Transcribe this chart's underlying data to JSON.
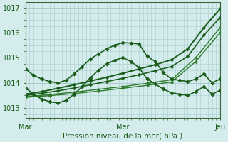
{
  "bg_color": "#d4ecec",
  "grid_color": "#aacccc",
  "dark_green": "#1a5c1a",
  "mid_green": "#2d7a2d",
  "ylim": [
    1012.6,
    1017.2
  ],
  "xlim": [
    0,
    48
  ],
  "x_ticks": [
    0,
    24,
    48
  ],
  "x_tick_labels": [
    "Mar",
    "Mer",
    "Jeu"
  ],
  "xlabel": "Pression niveau de la mer( hPa )",
  "series": [
    {
      "x": [
        0,
        2,
        4,
        6,
        8,
        10,
        12,
        14,
        16,
        18,
        20,
        22,
        24,
        26,
        28,
        30,
        32,
        34,
        36,
        38,
        40,
        42,
        44,
        46,
        48
      ],
      "y": [
        1014.55,
        1014.3,
        1014.15,
        1014.05,
        1014.0,
        1014.1,
        1014.35,
        1014.65,
        1014.95,
        1015.15,
        1015.35,
        1015.5,
        1015.6,
        1015.58,
        1015.55,
        1015.05,
        1014.85,
        1014.4,
        1014.15,
        1014.1,
        1014.05,
        1014.15,
        1014.35,
        1014.0,
        1014.15
      ],
      "color": "#1a5c1a",
      "lw": 1.2,
      "marker": "D",
      "ms": 2.8,
      "zorder": 5
    },
    {
      "x": [
        0,
        2,
        4,
        6,
        8,
        10,
        12,
        14,
        16,
        18,
        20,
        22,
        24,
        26,
        28,
        30,
        32,
        34,
        36,
        38,
        40,
        42,
        44,
        46,
        48
      ],
      "y": [
        1013.8,
        1013.55,
        1013.35,
        1013.25,
        1013.2,
        1013.3,
        1013.55,
        1013.85,
        1014.2,
        1014.5,
        1014.75,
        1014.9,
        1015.0,
        1014.85,
        1014.6,
        1014.15,
        1013.95,
        1013.75,
        1013.6,
        1013.55,
        1013.5,
        1013.65,
        1013.85,
        1013.55,
        1013.7
      ],
      "color": "#1a5c1a",
      "lw": 1.2,
      "marker": "D",
      "ms": 2.8,
      "zorder": 5
    },
    {
      "x": [
        0,
        4,
        8,
        12,
        16,
        20,
        24,
        28,
        32,
        36,
        40,
        44,
        48
      ],
      "y": [
        1013.55,
        1013.65,
        1013.78,
        1013.92,
        1014.07,
        1014.22,
        1014.38,
        1014.55,
        1014.72,
        1014.92,
        1015.35,
        1016.2,
        1016.95
      ],
      "color": "#1a5c1a",
      "lw": 1.4,
      "marker": "D",
      "ms": 2.5,
      "zorder": 4
    },
    {
      "x": [
        0,
        4,
        8,
        12,
        16,
        20,
        24,
        28,
        32,
        36,
        40,
        44,
        48
      ],
      "y": [
        1013.5,
        1013.58,
        1013.68,
        1013.79,
        1013.92,
        1014.05,
        1014.18,
        1014.32,
        1014.48,
        1014.65,
        1015.05,
        1015.9,
        1016.6
      ],
      "color": "#1a5c1a",
      "lw": 1.2,
      "marker": "D",
      "ms": 2.5,
      "zorder": 4
    },
    {
      "x": [
        0,
        6,
        12,
        18,
        24,
        30,
        36,
        42,
        48
      ],
      "y": [
        1013.45,
        1013.53,
        1013.63,
        1013.74,
        1013.85,
        1013.98,
        1014.12,
        1015.0,
        1016.2
      ],
      "color": "#2d7a2d",
      "lw": 1.0,
      "marker": "D",
      "ms": 2.3,
      "zorder": 3
    },
    {
      "x": [
        0,
        6,
        12,
        18,
        24,
        30,
        36,
        42,
        48
      ],
      "y": [
        1013.42,
        1013.49,
        1013.57,
        1013.67,
        1013.78,
        1013.9,
        1014.03,
        1014.85,
        1016.0
      ],
      "color": "#2d7a2d",
      "lw": 1.0,
      "marker": "D",
      "ms": 2.3,
      "zorder": 3
    }
  ]
}
